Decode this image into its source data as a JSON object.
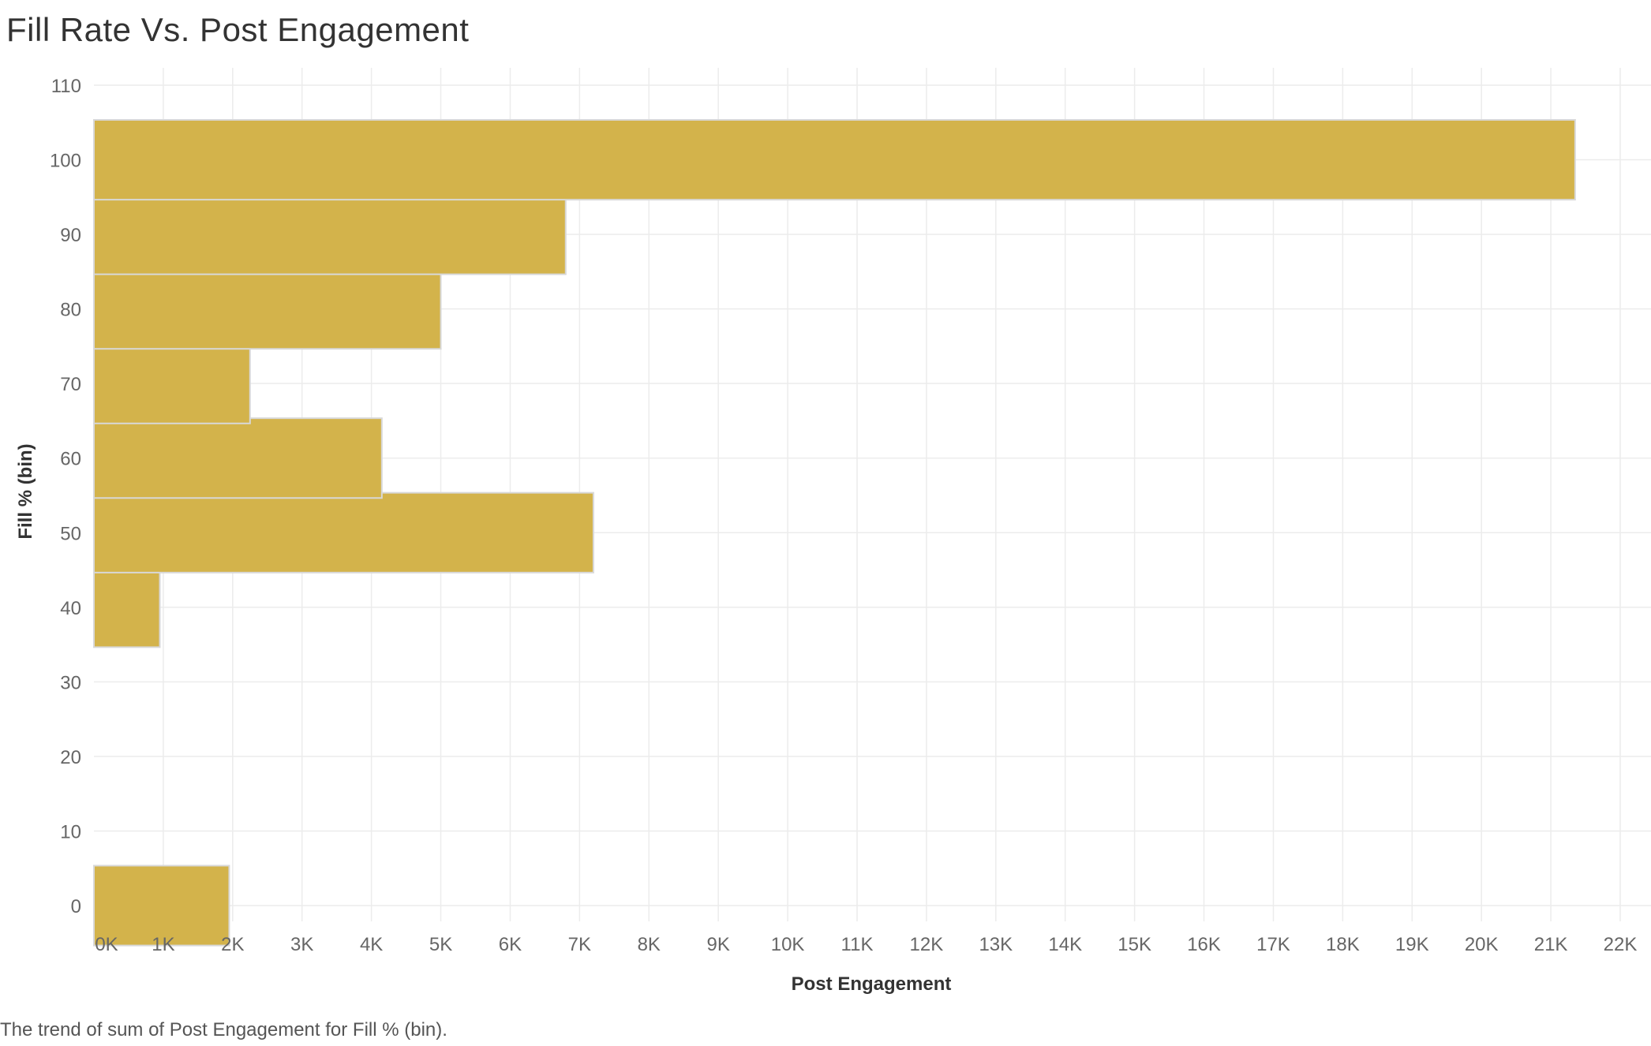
{
  "title": "Fill Rate Vs. Post Engagement",
  "caption": "The trend of sum of Post Engagement for Fill % (bin).",
  "colors": {
    "bar": "#D3B34B",
    "bar_border": "#D8D8D8",
    "grid": "#ECECEC",
    "text": "#333333"
  },
  "chart_data": {
    "type": "bar",
    "orientation": "horizontal",
    "xlabel": "Post Engagement",
    "ylabel": "Fill % (bin)",
    "xlim": [
      0,
      22000
    ],
    "ylim": [
      -2,
      110
    ],
    "x_ticks": [
      "0K",
      "1K",
      "2K",
      "3K",
      "4K",
      "5K",
      "6K",
      "7K",
      "8K",
      "9K",
      "10K",
      "11K",
      "12K",
      "13K",
      "14K",
      "15K",
      "16K",
      "17K",
      "18K",
      "19K",
      "20K",
      "21K",
      "22K"
    ],
    "y_ticks": [
      "0",
      "10",
      "20",
      "30",
      "40",
      "50",
      "60",
      "70",
      "80",
      "90",
      "100",
      "110"
    ],
    "bin_width": 10.7,
    "grid": true,
    "legend": "none",
    "bins": [
      {
        "bin": 0,
        "post_engagement": 1950
      },
      {
        "bin": 40,
        "post_engagement": 950
      },
      {
        "bin": 50,
        "post_engagement": 7200
      },
      {
        "bin": 60,
        "post_engagement": 4150
      },
      {
        "bin": 70,
        "post_engagement": 2250
      },
      {
        "bin": 80,
        "post_engagement": 5000
      },
      {
        "bin": 90,
        "post_engagement": 6800
      },
      {
        "bin": 100,
        "post_engagement": 21350
      }
    ]
  }
}
